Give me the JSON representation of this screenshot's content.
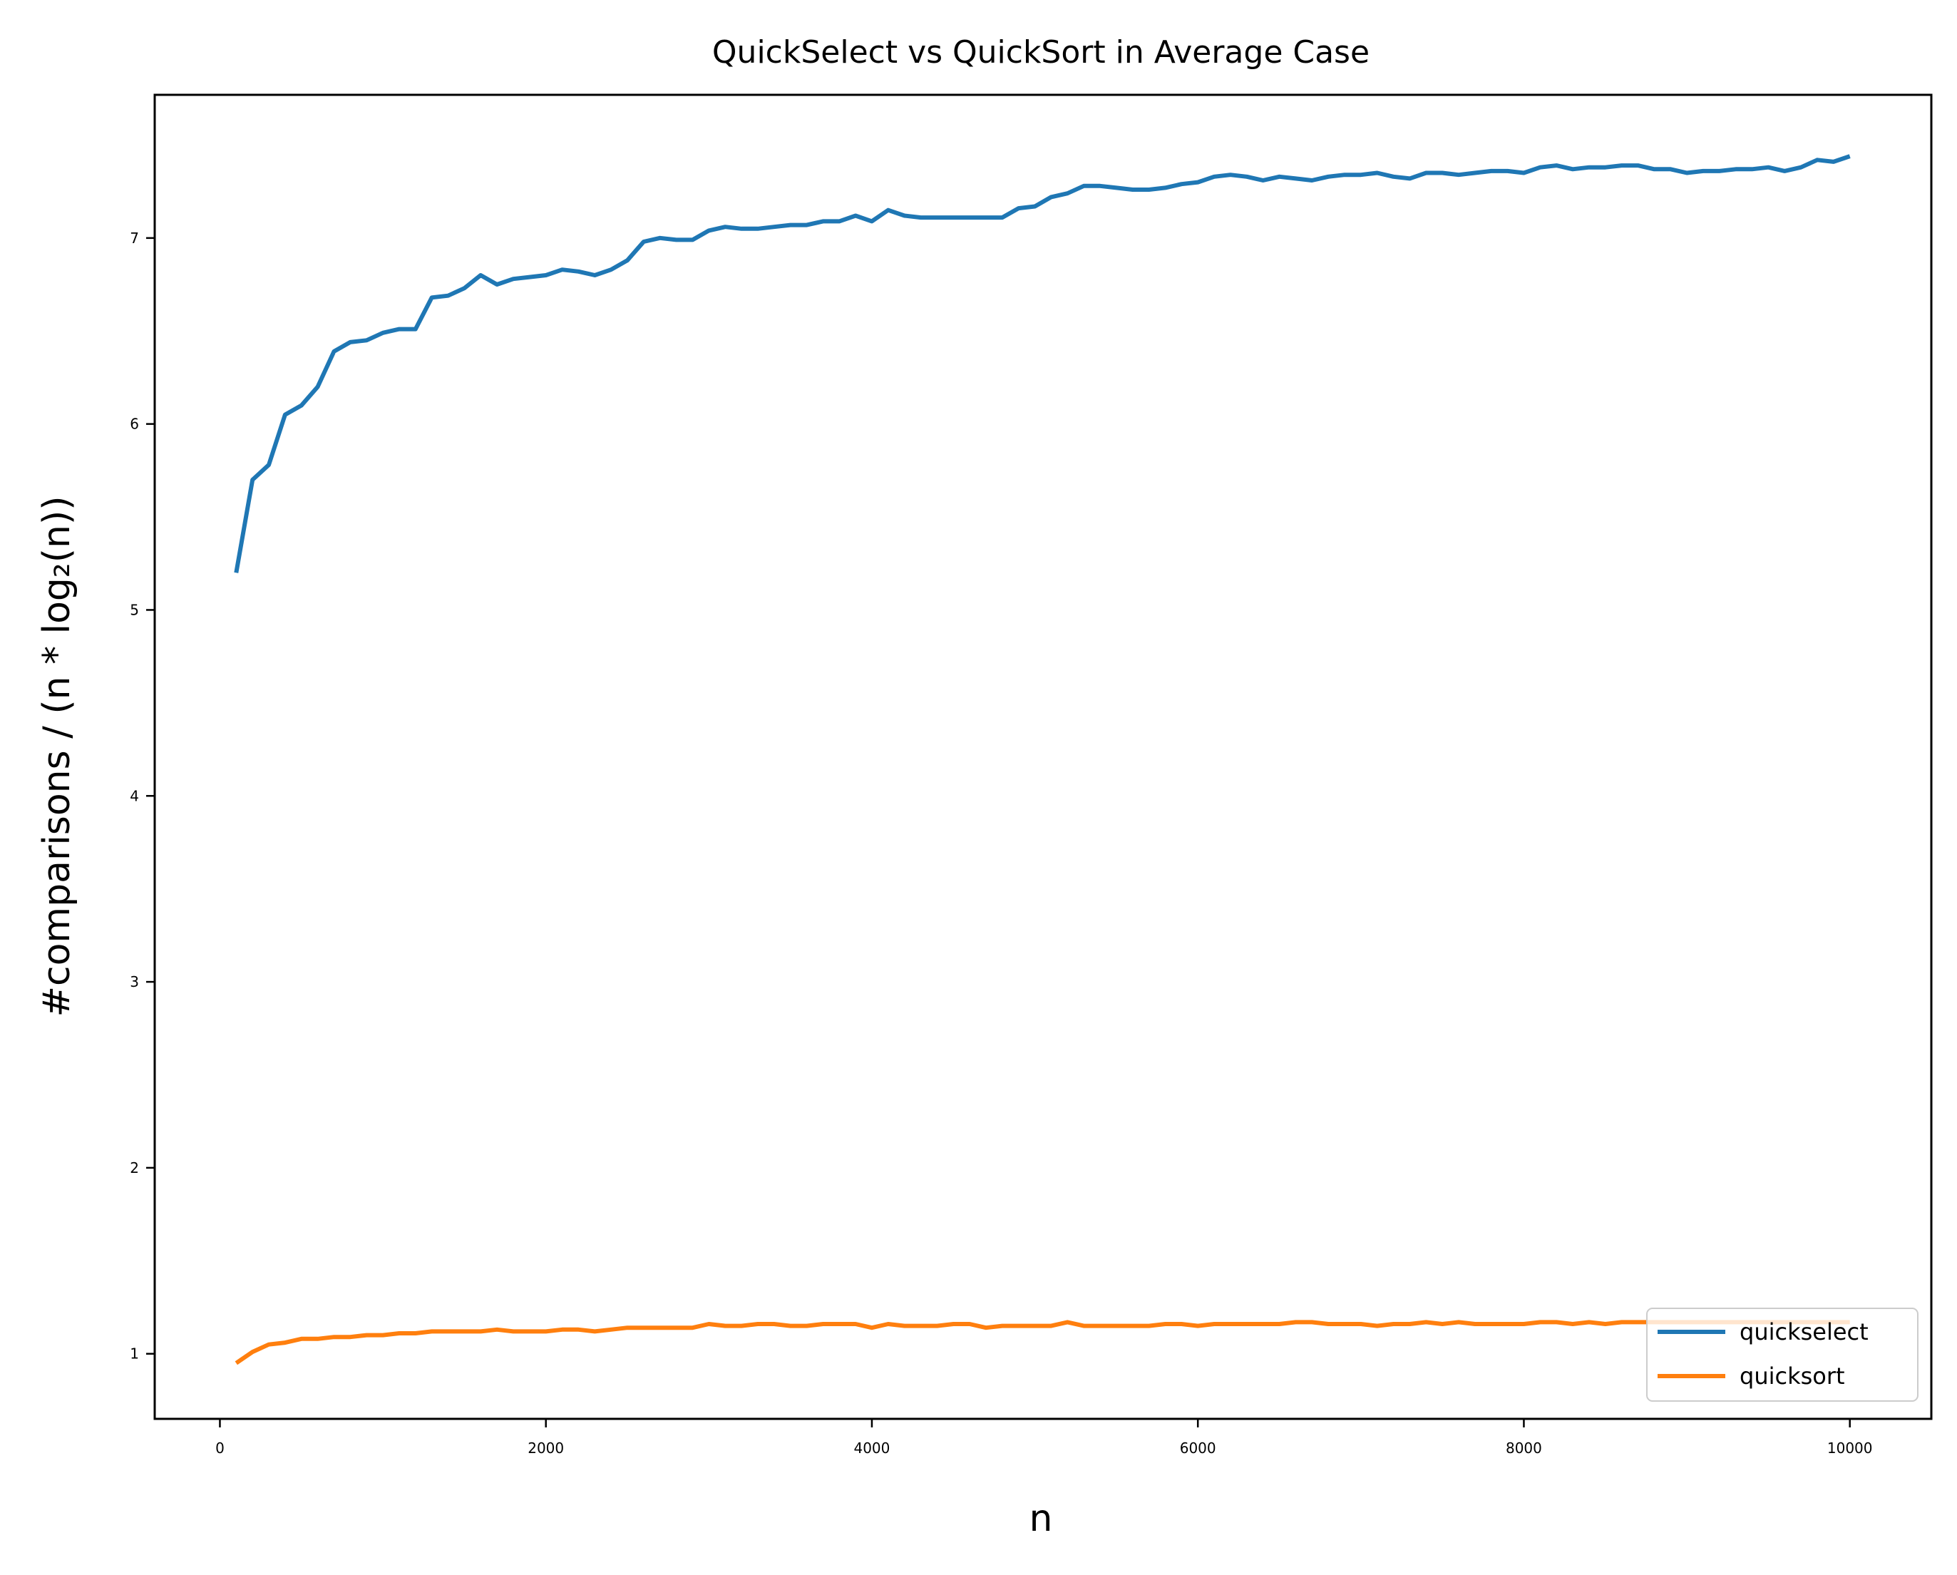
{
  "chart_data": {
    "type": "line",
    "title": "QuickSelect vs QuickSort in Average Case",
    "xlabel": "n",
    "ylabel": "#comparisons / (n * log₂(n))",
    "xlim": [
      -400,
      10500
    ],
    "ylim": [
      0.65,
      7.77
    ],
    "xticks": [
      0,
      2000,
      4000,
      6000,
      8000,
      10000
    ],
    "xtick_labels": [
      "0",
      "2000",
      "4000",
      "6000",
      "8000",
      "10000"
    ],
    "yticks": [
      1,
      2,
      3,
      4,
      5,
      6,
      7
    ],
    "ytick_labels": [
      "1",
      "2",
      "3",
      "4",
      "5",
      "6",
      "7"
    ],
    "grid": false,
    "legend_position": "lower-right",
    "x": [
      100,
      200,
      300,
      400,
      500,
      600,
      700,
      800,
      900,
      1000,
      1100,
      1200,
      1300,
      1400,
      1500,
      1600,
      1700,
      1800,
      1900,
      2000,
      2100,
      2200,
      2300,
      2400,
      2500,
      2600,
      2700,
      2800,
      2900,
      3000,
      3100,
      3200,
      3300,
      3400,
      3500,
      3600,
      3700,
      3800,
      3900,
      4000,
      4100,
      4200,
      4300,
      4400,
      4500,
      4600,
      4700,
      4800,
      4900,
      5000,
      5100,
      5200,
      5300,
      5400,
      5500,
      5600,
      5700,
      5800,
      5900,
      6000,
      6100,
      6200,
      6300,
      6400,
      6500,
      6600,
      6700,
      6800,
      6900,
      7000,
      7100,
      7200,
      7300,
      7400,
      7500,
      7600,
      7700,
      7800,
      7900,
      8000,
      8100,
      8200,
      8300,
      8400,
      8500,
      8600,
      8700,
      8800,
      8900,
      9000,
      9100,
      9200,
      9300,
      9400,
      9500,
      9600,
      9700,
      9800,
      9900,
      10000
    ],
    "series": [
      {
        "name": "quickselect",
        "color": "#1f77b4",
        "values": [
          5.2,
          5.7,
          5.78,
          6.05,
          6.1,
          6.2,
          6.39,
          6.44,
          6.45,
          6.49,
          6.51,
          6.51,
          6.68,
          6.69,
          6.73,
          6.8,
          6.75,
          6.78,
          6.79,
          6.8,
          6.83,
          6.82,
          6.8,
          6.83,
          6.88,
          6.98,
          7.0,
          6.99,
          6.99,
          7.04,
          7.06,
          7.05,
          7.05,
          7.06,
          7.07,
          7.07,
          7.09,
          7.09,
          7.12,
          7.09,
          7.15,
          7.12,
          7.11,
          7.11,
          7.11,
          7.11,
          7.11,
          7.11,
          7.16,
          7.17,
          7.22,
          7.24,
          7.28,
          7.28,
          7.27,
          7.26,
          7.26,
          7.27,
          7.29,
          7.3,
          7.33,
          7.34,
          7.33,
          7.31,
          7.33,
          7.32,
          7.31,
          7.33,
          7.34,
          7.34,
          7.35,
          7.33,
          7.32,
          7.35,
          7.35,
          7.34,
          7.35,
          7.36,
          7.36,
          7.35,
          7.38,
          7.39,
          7.37,
          7.38,
          7.38,
          7.39,
          7.39,
          7.37,
          7.37,
          7.35,
          7.36,
          7.36,
          7.37,
          7.37,
          7.38,
          7.36,
          7.38,
          7.42,
          7.41,
          7.44
        ]
      },
      {
        "name": "quicksort",
        "color": "#ff7f0e",
        "values": [
          0.95,
          1.01,
          1.05,
          1.06,
          1.08,
          1.08,
          1.09,
          1.09,
          1.1,
          1.1,
          1.11,
          1.11,
          1.12,
          1.12,
          1.12,
          1.12,
          1.13,
          1.12,
          1.12,
          1.12,
          1.13,
          1.13,
          1.12,
          1.13,
          1.14,
          1.14,
          1.14,
          1.14,
          1.14,
          1.16,
          1.15,
          1.15,
          1.16,
          1.16,
          1.15,
          1.15,
          1.16,
          1.16,
          1.16,
          1.14,
          1.16,
          1.15,
          1.15,
          1.15,
          1.16,
          1.16,
          1.14,
          1.15,
          1.15,
          1.15,
          1.15,
          1.17,
          1.15,
          1.15,
          1.15,
          1.15,
          1.15,
          1.16,
          1.16,
          1.15,
          1.16,
          1.16,
          1.16,
          1.16,
          1.16,
          1.17,
          1.17,
          1.16,
          1.16,
          1.16,
          1.15,
          1.16,
          1.16,
          1.17,
          1.16,
          1.17,
          1.16,
          1.16,
          1.16,
          1.16,
          1.17,
          1.17,
          1.16,
          1.17,
          1.16,
          1.17,
          1.17,
          1.17,
          1.17,
          1.17,
          1.17,
          1.17,
          1.17,
          1.17,
          1.17,
          1.17,
          1.17,
          1.17,
          1.17,
          1.17
        ]
      }
    ]
  }
}
